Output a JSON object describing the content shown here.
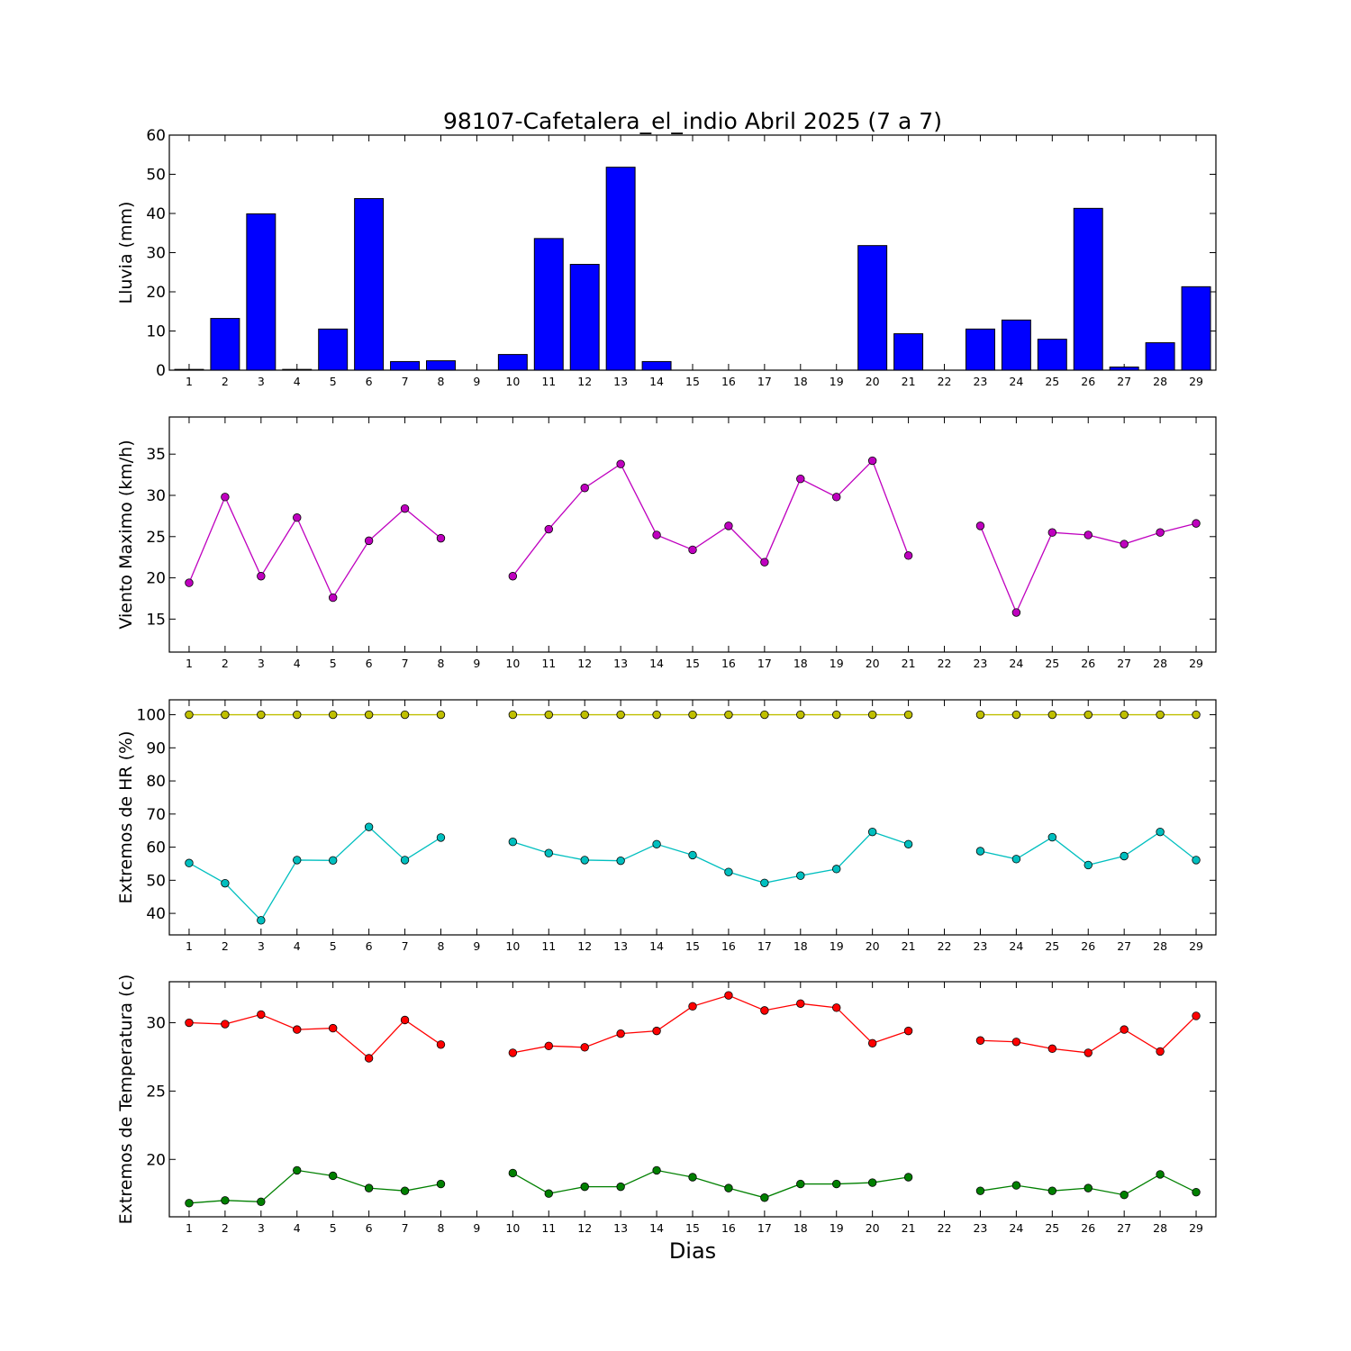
{
  "title": "98107-Cafetalera_el_indio Abril 2025  (7 a 7)",
  "xlabel": "Dias",
  "chart_data": [
    {
      "type": "bar",
      "ylabel": "Lluvia (mm)",
      "ylim": [
        0,
        60
      ],
      "yticks": [
        0,
        10,
        20,
        30,
        40,
        50,
        60
      ],
      "categories": [
        "1",
        "2",
        "3",
        "4",
        "5",
        "6",
        "7",
        "8",
        "9",
        "10",
        "11",
        "12",
        "13",
        "14",
        "15",
        "16",
        "17",
        "18",
        "19",
        "20",
        "21",
        "22",
        "23",
        "24",
        "25",
        "26",
        "27",
        "28",
        "29"
      ],
      "series": [
        {
          "color": "#0000ff",
          "values": [
            0.2,
            13.2,
            39.9,
            0.2,
            10.5,
            43.8,
            2.2,
            2.4,
            null,
            4.0,
            33.6,
            27.0,
            51.8,
            2.2,
            0,
            0,
            0,
            0,
            0,
            31.8,
            9.3,
            null,
            10.5,
            12.8,
            7.9,
            41.3,
            0.8,
            7.0,
            21.3
          ]
        }
      ]
    },
    {
      "type": "line",
      "ylabel": "Viento Maximo (km/h)",
      "ylim": [
        11,
        39.5
      ],
      "yticks": [
        15,
        20,
        25,
        30,
        35
      ],
      "categories": [
        "1",
        "2",
        "3",
        "4",
        "5",
        "6",
        "7",
        "8",
        "9",
        "10",
        "11",
        "12",
        "13",
        "14",
        "15",
        "16",
        "17",
        "18",
        "19",
        "20",
        "21",
        "22",
        "23",
        "24",
        "25",
        "26",
        "27",
        "28",
        "29"
      ],
      "series": [
        {
          "color": "#bf00bf",
          "values": [
            19.4,
            29.8,
            20.2,
            27.3,
            17.6,
            24.5,
            28.4,
            24.8,
            null,
            20.2,
            25.9,
            30.9,
            33.8,
            25.2,
            23.4,
            26.3,
            21.9,
            32.0,
            29.8,
            34.2,
            22.7,
            null,
            26.3,
            15.8,
            25.5,
            25.2,
            24.1,
            25.5,
            26.6
          ]
        }
      ]
    },
    {
      "type": "line",
      "ylabel": "Extremos de HR (%)",
      "ylim": [
        33.5,
        104.5
      ],
      "yticks": [
        40,
        50,
        60,
        70,
        80,
        90,
        100
      ],
      "categories": [
        "1",
        "2",
        "3",
        "4",
        "5",
        "6",
        "7",
        "8",
        "9",
        "10",
        "11",
        "12",
        "13",
        "14",
        "15",
        "16",
        "17",
        "18",
        "19",
        "20",
        "21",
        "22",
        "23",
        "24",
        "25",
        "26",
        "27",
        "28",
        "29"
      ],
      "series": [
        {
          "color": "#bfbf00",
          "values": [
            100,
            100,
            100,
            100,
            100,
            100,
            100,
            100,
            null,
            100,
            100,
            100,
            100,
            100,
            100,
            100,
            100,
            100,
            100,
            100,
            100,
            null,
            100,
            100,
            100,
            100,
            100,
            100,
            100
          ]
        },
        {
          "color": "#00bfbf",
          "values": [
            55.2,
            49.1,
            37.9,
            56.1,
            56.0,
            66.1,
            56.1,
            62.9,
            null,
            61.6,
            58.2,
            56.1,
            55.9,
            60.9,
            57.6,
            52.5,
            49.2,
            51.4,
            53.4,
            64.6,
            60.9,
            null,
            58.8,
            56.4,
            63.0,
            54.6,
            57.3,
            64.6,
            56.1
          ]
        }
      ]
    },
    {
      "type": "line",
      "ylabel": "Extremos de Temperatura (c)",
      "ylim": [
        15.8,
        33.0
      ],
      "yticks": [
        20,
        25,
        30
      ],
      "categories": [
        "1",
        "2",
        "3",
        "4",
        "5",
        "6",
        "7",
        "8",
        "9",
        "10",
        "11",
        "12",
        "13",
        "14",
        "15",
        "16",
        "17",
        "18",
        "19",
        "20",
        "21",
        "22",
        "23",
        "24",
        "25",
        "26",
        "27",
        "28",
        "29"
      ],
      "series": [
        {
          "color": "#ff0000",
          "values": [
            30.0,
            29.9,
            30.6,
            29.5,
            29.6,
            27.4,
            30.2,
            28.4,
            null,
            27.8,
            28.3,
            28.2,
            29.2,
            29.4,
            31.2,
            32.0,
            30.9,
            31.4,
            31.1,
            28.5,
            29.4,
            null,
            28.7,
            28.6,
            28.1,
            27.8,
            29.5,
            27.9,
            30.5
          ]
        },
        {
          "color": "#008000",
          "values": [
            16.8,
            17.0,
            16.9,
            19.2,
            18.8,
            17.9,
            17.7,
            18.2,
            null,
            19.0,
            17.5,
            18.0,
            18.0,
            19.2,
            18.7,
            17.9,
            17.2,
            18.2,
            18.2,
            18.3,
            18.7,
            null,
            17.7,
            18.1,
            17.7,
            17.9,
            17.4,
            18.9,
            17.6
          ]
        }
      ]
    }
  ]
}
